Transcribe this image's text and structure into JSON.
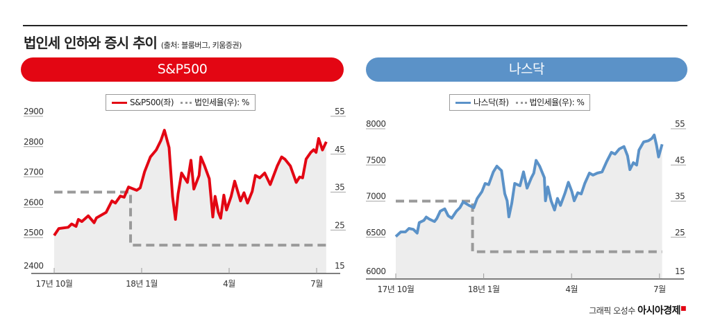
{
  "title": "법인세 인하와 증시 추이",
  "source": "(출처: 블룸버그, 키움증권)",
  "credit": {
    "author": "그래픽 오성수",
    "brand": "아시아경제",
    "mark": "ㅁ"
  },
  "colors": {
    "sp": "#e30613",
    "nasdaq": "#5b92c8",
    "tax": "#9a9a9a",
    "fill": "#ededed"
  },
  "chart_data": [
    {
      "type": "line",
      "title": "S&P500",
      "legend": {
        "series": "S&P500(좌)",
        "tax": "법인세율(우): %"
      },
      "x_ticks": [
        {
          "m": 0,
          "label": "17년 10월"
        },
        {
          "m": 3,
          "label": "18년 1월"
        },
        {
          "m": 6,
          "label": "4월"
        },
        {
          "m": 9,
          "label": "7월"
        }
      ],
      "ylim_left": [
        2400,
        2900
      ],
      "yticks_left": [
        2400,
        2500,
        2600,
        2700,
        2800,
        2900
      ],
      "ylim_right": [
        15,
        55
      ],
      "yticks_right": [
        15,
        25,
        35,
        45,
        55
      ],
      "series": {
        "name": "S&P500",
        "points": [
          [
            0,
            2507
          ],
          [
            0.16,
            2530
          ],
          [
            0.48,
            2534
          ],
          [
            0.6,
            2545
          ],
          [
            0.75,
            2537
          ],
          [
            0.83,
            2560
          ],
          [
            0.95,
            2553
          ],
          [
            1.17,
            2572
          ],
          [
            1.37,
            2549
          ],
          [
            1.45,
            2565
          ],
          [
            1.78,
            2583
          ],
          [
            1.98,
            2621
          ],
          [
            2.1,
            2614
          ],
          [
            2.27,
            2637
          ],
          [
            2.4,
            2633
          ],
          [
            2.55,
            2667
          ],
          [
            2.83,
            2656
          ],
          [
            2.95,
            2664
          ],
          [
            3.1,
            2717
          ],
          [
            3.3,
            2766
          ],
          [
            3.5,
            2789
          ],
          [
            3.66,
            2820
          ],
          [
            3.78,
            2854
          ],
          [
            3.94,
            2797
          ],
          [
            4.06,
            2636
          ],
          [
            4.16,
            2560
          ],
          [
            4.25,
            2644
          ],
          [
            4.37,
            2713
          ],
          [
            4.57,
            2682
          ],
          [
            4.69,
            2755
          ],
          [
            4.79,
            2660
          ],
          [
            4.97,
            2705
          ],
          [
            5.03,
            2766
          ],
          [
            5.16,
            2736
          ],
          [
            5.32,
            2694
          ],
          [
            5.44,
            2568
          ],
          [
            5.52,
            2636
          ],
          [
            5.63,
            2583
          ],
          [
            5.71,
            2564
          ],
          [
            5.82,
            2640
          ],
          [
            5.91,
            2591
          ],
          [
            6.07,
            2636
          ],
          [
            6.19,
            2686
          ],
          [
            6.39,
            2621
          ],
          [
            6.51,
            2648
          ],
          [
            6.63,
            2614
          ],
          [
            6.79,
            2652
          ],
          [
            6.9,
            2705
          ],
          [
            7.05,
            2697
          ],
          [
            7.22,
            2713
          ],
          [
            7.41,
            2675
          ],
          [
            7.65,
            2736
          ],
          [
            7.8,
            2766
          ],
          [
            7.92,
            2758
          ],
          [
            8.1,
            2736
          ],
          [
            8.3,
            2682
          ],
          [
            8.42,
            2700
          ],
          [
            8.52,
            2697
          ],
          [
            8.64,
            2759
          ],
          [
            8.8,
            2781
          ],
          [
            8.9,
            2790
          ],
          [
            8.98,
            2781
          ],
          [
            9.07,
            2827
          ],
          [
            9.2,
            2789
          ],
          [
            9.33,
            2816
          ]
        ]
      },
      "tax_rate": [
        {
          "from": 0,
          "to": 2.62,
          "value": 35
        },
        {
          "from": 2.62,
          "to": 9.33,
          "value": 21
        }
      ]
    },
    {
      "type": "line",
      "title": "나스닥",
      "legend": {
        "series": "나스닥(좌)",
        "tax": "법인세율(우): %"
      },
      "x_ticks": [
        {
          "m": 0,
          "label": "17년 10월"
        },
        {
          "m": 3,
          "label": "18년 1월"
        },
        {
          "m": 6,
          "label": "4월"
        },
        {
          "m": 9,
          "label": "7월"
        }
      ],
      "ylim_left": [
        6000,
        8000
      ],
      "yticks_left": [
        6000,
        6500,
        7000,
        7500,
        8000
      ],
      "ylim_right": [
        15,
        55
      ],
      "yticks_right": [
        15,
        25,
        35,
        45,
        55
      ],
      "series": {
        "name": "나스닥",
        "points": [
          [
            0,
            6510
          ],
          [
            0.17,
            6574
          ],
          [
            0.33,
            6574
          ],
          [
            0.45,
            6622
          ],
          [
            0.6,
            6610
          ],
          [
            0.73,
            6558
          ],
          [
            0.8,
            6702
          ],
          [
            0.96,
            6734
          ],
          [
            1.04,
            6780
          ],
          [
            1.15,
            6750
          ],
          [
            1.32,
            6718
          ],
          [
            1.4,
            6760
          ],
          [
            1.52,
            6861
          ],
          [
            1.67,
            6893
          ],
          [
            1.79,
            6797
          ],
          [
            1.91,
            6765
          ],
          [
            2.07,
            6861
          ],
          [
            2.19,
            6909
          ],
          [
            2.3,
            6989
          ],
          [
            2.5,
            6941
          ],
          [
            2.66,
            6909
          ],
          [
            2.78,
            7037
          ],
          [
            2.94,
            7132
          ],
          [
            3.05,
            7244
          ],
          [
            3.17,
            7228
          ],
          [
            3.33,
            7404
          ],
          [
            3.45,
            7483
          ],
          [
            3.61,
            7420
          ],
          [
            3.72,
            7101
          ],
          [
            3.8,
            7005
          ],
          [
            3.86,
            6782
          ],
          [
            3.96,
            6973
          ],
          [
            4.06,
            7244
          ],
          [
            4.24,
            7212
          ],
          [
            4.36,
            7404
          ],
          [
            4.48,
            7180
          ],
          [
            4.63,
            7324
          ],
          [
            4.71,
            7388
          ],
          [
            4.79,
            7563
          ],
          [
            4.91,
            7483
          ],
          [
            5.07,
            7324
          ],
          [
            5.11,
            7005
          ],
          [
            5.19,
            7196
          ],
          [
            5.3,
            7005
          ],
          [
            5.42,
            6877
          ],
          [
            5.52,
            7037
          ],
          [
            5.62,
            6941
          ],
          [
            5.78,
            7116
          ],
          [
            5.89,
            7260
          ],
          [
            6.01,
            7132
          ],
          [
            6.09,
            7005
          ],
          [
            6.21,
            7116
          ],
          [
            6.33,
            7100
          ],
          [
            6.45,
            7244
          ],
          [
            6.61,
            7388
          ],
          [
            6.73,
            7360
          ],
          [
            6.88,
            7388
          ],
          [
            7.04,
            7404
          ],
          [
            7.2,
            7547
          ],
          [
            7.36,
            7674
          ],
          [
            7.48,
            7650
          ],
          [
            7.63,
            7722
          ],
          [
            7.79,
            7754
          ],
          [
            7.91,
            7627
          ],
          [
            7.99,
            7435
          ],
          [
            8.11,
            7531
          ],
          [
            8.22,
            7499
          ],
          [
            8.3,
            7706
          ],
          [
            8.46,
            7818
          ],
          [
            8.62,
            7834
          ],
          [
            8.74,
            7866
          ],
          [
            8.82,
            7914
          ],
          [
            8.9,
            7770
          ],
          [
            8.97,
            7611
          ],
          [
            9.09,
            7786
          ]
        ]
      },
      "tax_rate": [
        {
          "from": 0,
          "to": 2.62,
          "value": 35
        },
        {
          "from": 2.62,
          "to": 9.09,
          "value": 21
        }
      ]
    }
  ]
}
